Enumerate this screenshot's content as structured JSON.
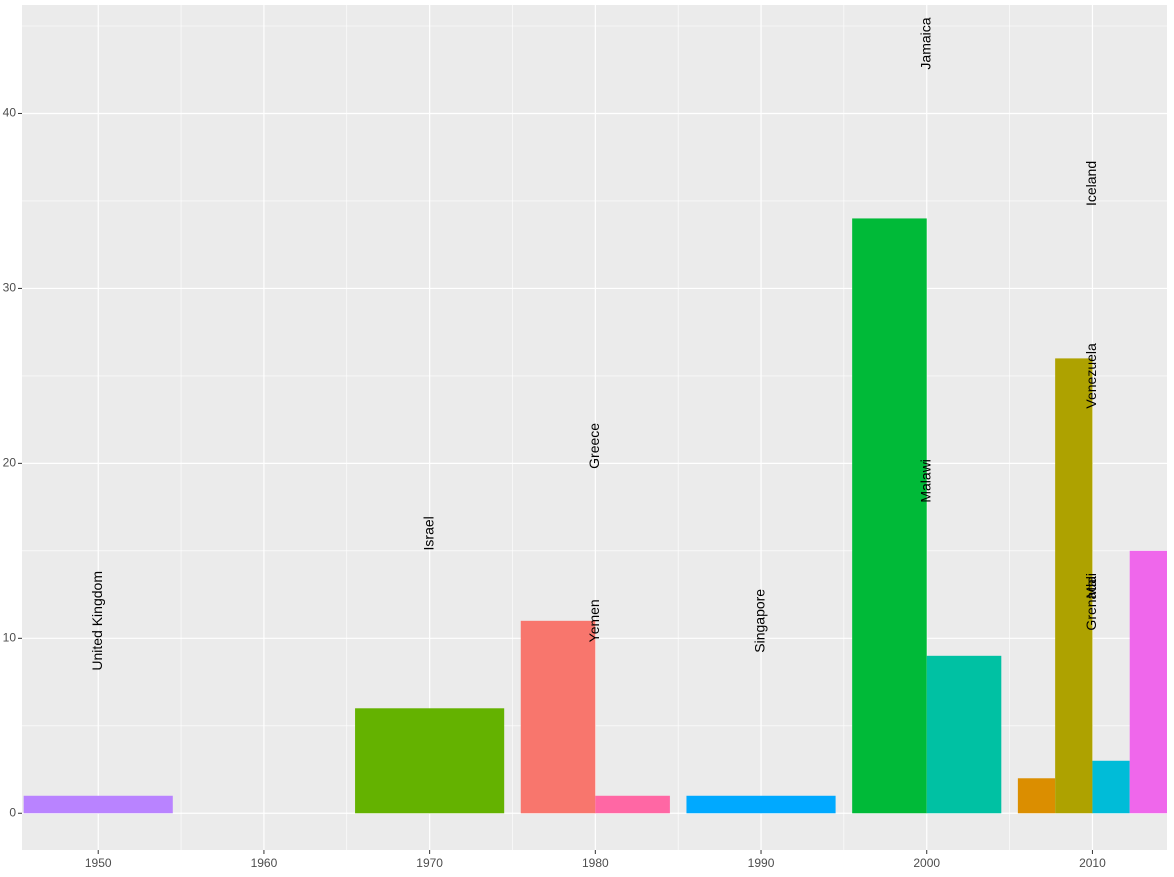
{
  "chart_data": {
    "type": "bar",
    "bars": [
      {
        "decade": 1950,
        "label": "United Kingdom",
        "value": 1,
        "color": "#B983FF"
      },
      {
        "decade": 1970,
        "label": "Israel",
        "value": 6,
        "color": "#64B200"
      },
      {
        "decade": 1980,
        "label": "Greece",
        "value": 11,
        "color": "#F8766D"
      },
      {
        "decade": 1980,
        "label": "Yemen",
        "value": 1,
        "color": "#FF67A4"
      },
      {
        "decade": 1990,
        "label": "Singapore",
        "value": 1,
        "color": "#00A9FF"
      },
      {
        "decade": 2000,
        "label": "Jamaica",
        "value": 34,
        "color": "#00BA38"
      },
      {
        "decade": 2000,
        "label": "Malawi",
        "value": 9,
        "color": "#00C1A3"
      },
      {
        "decade": 2010,
        "label": "Grenada",
        "value": 2,
        "color": "#DB8E00"
      },
      {
        "decade": 2010,
        "label": "Iceland",
        "value": 26,
        "color": "#AEA200"
      },
      {
        "decade": 2010,
        "label": "Mali",
        "value": 3,
        "color": "#00BCD8"
      },
      {
        "decade": 2010,
        "label": "Venezuela",
        "value": 15,
        "color": "#EF67EB"
      }
    ],
    "xlim": [
      1945.4,
      2014.5
    ],
    "xticks": [
      1950,
      1960,
      1970,
      1980,
      1990,
      2000,
      2010
    ],
    "xminor": [
      1955,
      1965,
      1975,
      1985,
      1995,
      2005
    ],
    "ylim": [
      -2.1,
      46.2
    ],
    "yticks": [
      0,
      10,
      20,
      30,
      40
    ],
    "yminor": [
      5,
      15,
      25,
      35,
      45
    ],
    "grid": true
  }
}
